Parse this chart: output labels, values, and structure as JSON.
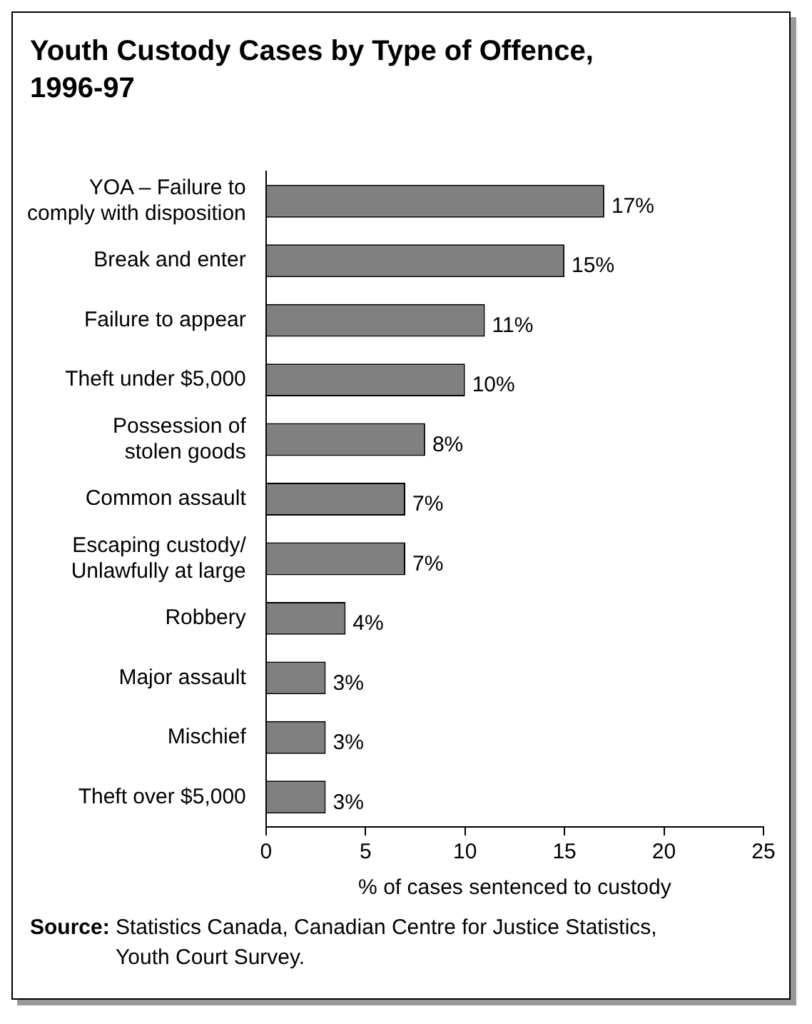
{
  "chart_data": {
    "type": "bar",
    "orientation": "horizontal",
    "title": "Youth Custody Cases by Type of Offence, 1996-97",
    "xlabel": "% of cases sentenced to custody",
    "categories": [
      "YOA – Failure to\ncomply with disposition",
      "Break and enter",
      "Failure to appear",
      "Theft under $5,000",
      "Possession of\nstolen goods",
      "Common assault",
      "Escaping custody/\nUnlawfully at large",
      "Robbery",
      "Major assault",
      "Mischief",
      "Theft over $5,000"
    ],
    "values": [
      17,
      15,
      11,
      10,
      8,
      7,
      7,
      4,
      3,
      3,
      3
    ],
    "value_labels": [
      "17%",
      "15%",
      "11%",
      "10%",
      "8%",
      "7%",
      "7%",
      "4%",
      "3%",
      "3%",
      "3%"
    ],
    "color": "#808080",
    "xlim": [
      0,
      25
    ],
    "xticks": [
      0,
      5,
      10,
      15,
      20,
      25
    ],
    "grid": false,
    "legend": false,
    "annotations": [
      "Source: Statistics Canada, Canadian Centre for Justice Statistics, Youth Court Survey."
    ]
  }
}
